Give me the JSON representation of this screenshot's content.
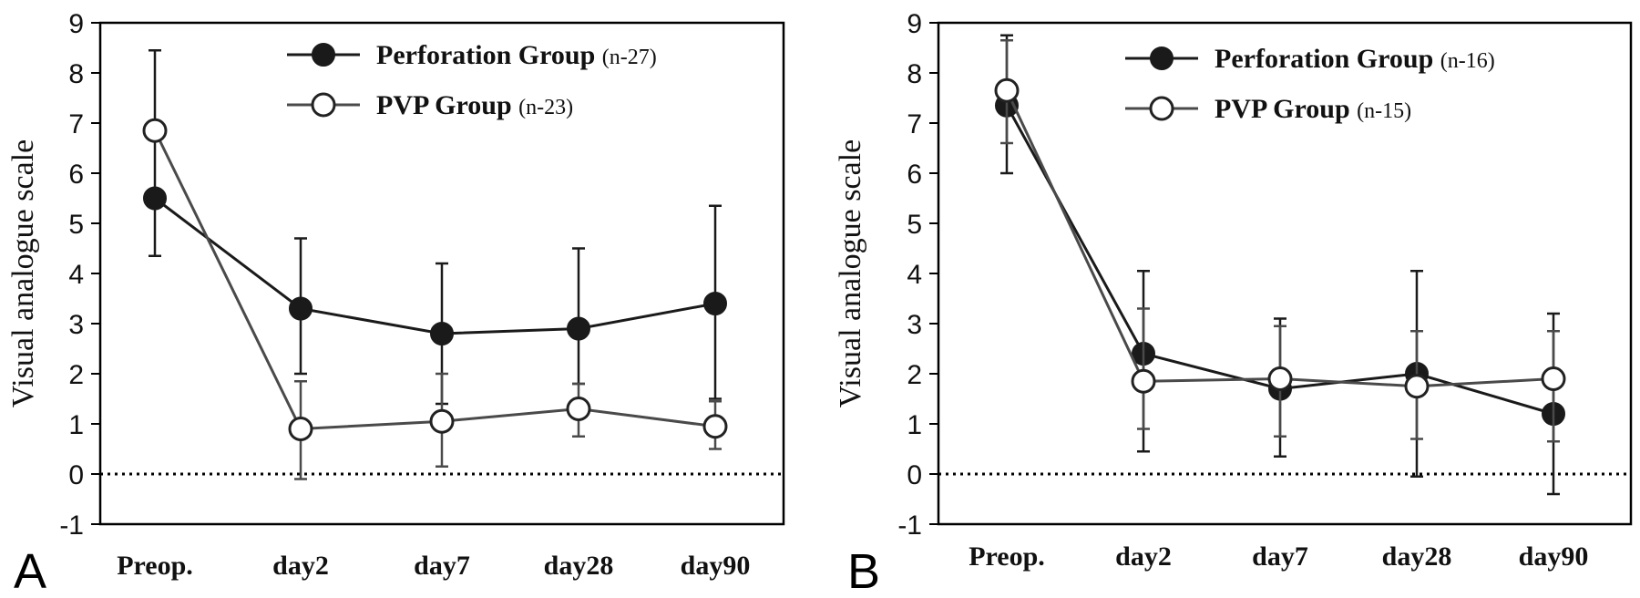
{
  "chart_data": [
    {
      "type": "line",
      "panel_label": "A",
      "ylabel": "Visual analogue scale",
      "categories": [
        "Preop.",
        "day2",
        "day7",
        "day28",
        "day90"
      ],
      "ylim": [
        -1,
        9
      ],
      "yticks": [
        -1,
        0,
        1,
        2,
        3,
        4,
        5,
        6,
        7,
        8,
        9
      ],
      "reference_line": 0,
      "legend_position": "top-right",
      "series": [
        {
          "name": "Perforation Group",
          "n_label": "(n-27)",
          "marker": "filled",
          "color": "#1a1a1a",
          "values": [
            5.5,
            3.3,
            2.8,
            2.9,
            3.4
          ],
          "error_low": [
            4.35,
            2.0,
            1.4,
            1.8,
            1.5
          ],
          "error_high": [
            8.45,
            4.7,
            4.2,
            4.5,
            5.35
          ]
        },
        {
          "name": "PVP Group",
          "n_label": "(n-23)",
          "marker": "open",
          "color": "#4a4a4a",
          "values": [
            6.85,
            0.9,
            1.05,
            1.3,
            0.95
          ],
          "error_low": [
            6.85,
            -0.1,
            0.15,
            0.75,
            0.5
          ],
          "error_high": [
            6.85,
            1.85,
            2.0,
            1.8,
            1.45
          ]
        }
      ]
    },
    {
      "type": "line",
      "panel_label": "B",
      "ylabel": "Visual analogue scale",
      "categories": [
        "Preop.",
        "day2",
        "day7",
        "day28",
        "day90"
      ],
      "ylim": [
        -1,
        9
      ],
      "yticks": [
        -1,
        0,
        1,
        2,
        3,
        4,
        5,
        6,
        7,
        8,
        9
      ],
      "reference_line": 0,
      "legend_position": "top-right",
      "series": [
        {
          "name": "Perforation Group",
          "n_label": "(n-16)",
          "marker": "filled",
          "color": "#1a1a1a",
          "values": [
            7.35,
            2.4,
            1.7,
            2.0,
            1.2
          ],
          "error_low": [
            6.0,
            0.45,
            0.35,
            -0.05,
            -0.4
          ],
          "error_high": [
            8.75,
            4.05,
            3.1,
            4.05,
            3.2
          ]
        },
        {
          "name": "PVP Group",
          "n_label": "(n-15)",
          "marker": "open",
          "color": "#4a4a4a",
          "values": [
            7.65,
            1.85,
            1.9,
            1.75,
            1.9
          ],
          "error_low": [
            6.6,
            0.9,
            0.75,
            0.7,
            0.65
          ],
          "error_high": [
            8.65,
            3.3,
            2.95,
            2.85,
            2.85
          ]
        }
      ]
    }
  ]
}
